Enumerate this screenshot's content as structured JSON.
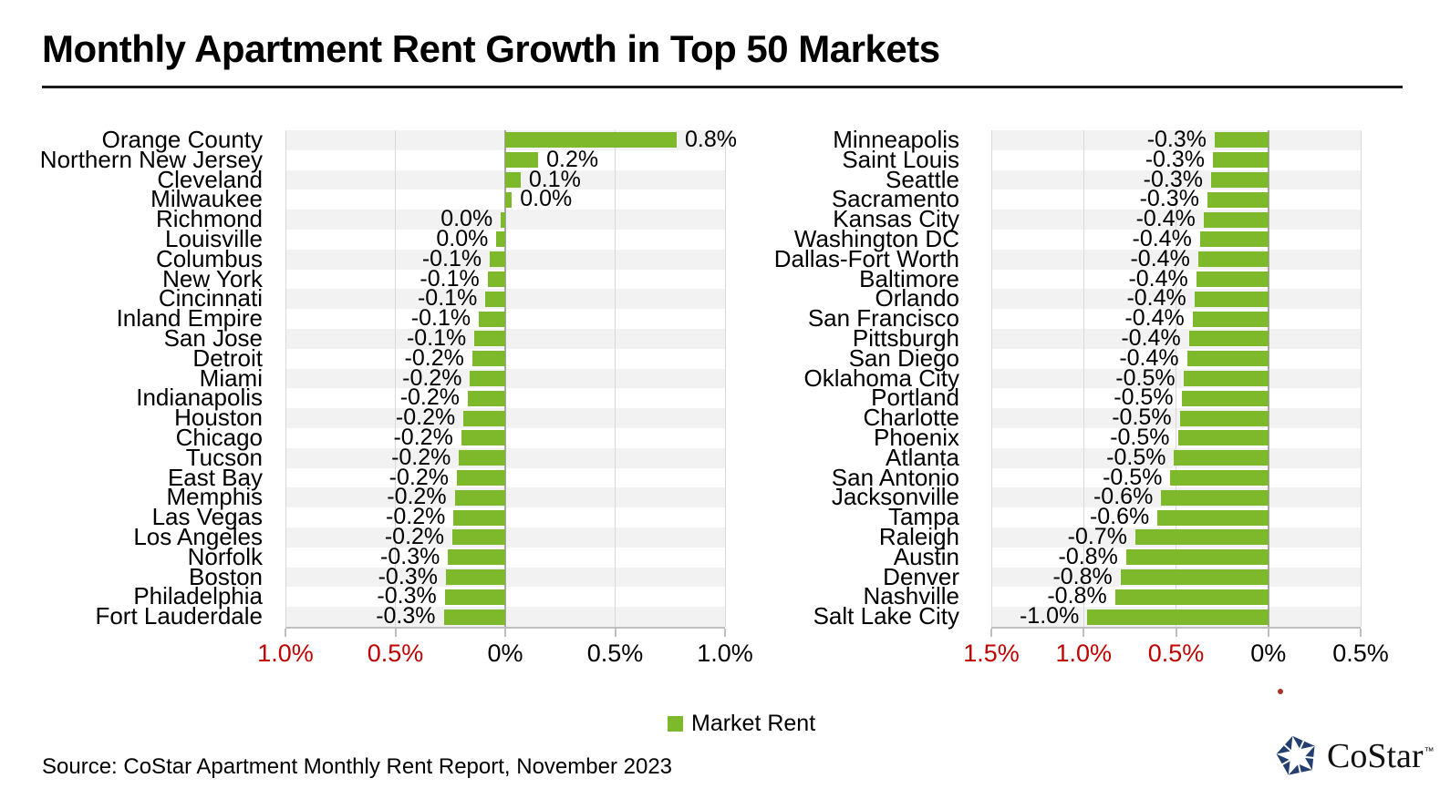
{
  "header": {
    "title": "Monthly Apartment Rent Growth in Top 50 Markets"
  },
  "legend": {
    "label": "Market Rent"
  },
  "source": {
    "text": "Source: CoStar Apartment Monthly Rent Report, November 2023"
  },
  "logo": {
    "text": "CoStar",
    "tm": "™"
  },
  "colors": {
    "bar_green": "#7db92b",
    "negative_tick_red": "#c00000",
    "stripe_gray": "#f2f2f2",
    "grid_gray": "#d9d9d9",
    "zero_line_gray": "#a6a6a6",
    "axis_gray": "#bfbfbf",
    "stray_dot_red": "#a93328",
    "logo_navy": "#243f6f"
  },
  "chart_data": [
    {
      "type": "bar",
      "orientation": "horizontal",
      "side": "left",
      "series_name": "Market Rent",
      "axis": {
        "min": -1.0,
        "max": 1.0,
        "ticks": [
          {
            "pos": -1.0,
            "label": "1.0%",
            "negative": true
          },
          {
            "pos": -0.5,
            "label": "0.5%",
            "negative": true
          },
          {
            "pos": 0,
            "label": "0%",
            "negative": false
          },
          {
            "pos": 0.5,
            "label": "0.5%",
            "negative": false
          },
          {
            "pos": 1.0,
            "label": "1.0%",
            "negative": false
          }
        ]
      },
      "rows": [
        {
          "city": "Orange County",
          "label": "0.8%",
          "value": 0.78
        },
        {
          "city": "Northern New Jersey",
          "label": "0.2%",
          "value": 0.15
        },
        {
          "city": "Cleveland",
          "label": "0.1%",
          "value": 0.07
        },
        {
          "city": "Milwaukee",
          "label": "0.0%",
          "value": 0.03
        },
        {
          "city": "Richmond",
          "label": "0.0%",
          "value": -0.02
        },
        {
          "city": "Louisville",
          "label": "0.0%",
          "value": -0.04
        },
        {
          "city": "Columbus",
          "label": "-0.1%",
          "value": -0.07
        },
        {
          "city": "New York",
          "label": "-0.1%",
          "value": -0.08
        },
        {
          "city": "Cincinnati",
          "label": "-0.1%",
          "value": -0.09
        },
        {
          "city": "Inland Empire",
          "label": "-0.1%",
          "value": -0.12
        },
        {
          "city": "San Jose",
          "label": "-0.1%",
          "value": -0.14
        },
        {
          "city": "Detroit",
          "label": "-0.2%",
          "value": -0.15
        },
        {
          "city": "Miami",
          "label": "-0.2%",
          "value": -0.16
        },
        {
          "city": "Indianapolis",
          "label": "-0.2%",
          "value": -0.17
        },
        {
          "city": "Houston",
          "label": "-0.2%",
          "value": -0.19
        },
        {
          "city": "Chicago",
          "label": "-0.2%",
          "value": -0.2
        },
        {
          "city": "Tucson",
          "label": "-0.2%",
          "value": -0.21
        },
        {
          "city": "East Bay",
          "label": "-0.2%",
          "value": -0.22
        },
        {
          "city": "Memphis",
          "label": "-0.2%",
          "value": -0.23
        },
        {
          "city": "Las Vegas",
          "label": "-0.2%",
          "value": -0.235
        },
        {
          "city": "Los Angeles",
          "label": "-0.2%",
          "value": -0.24
        },
        {
          "city": "Norfolk",
          "label": "-0.3%",
          "value": -0.26
        },
        {
          "city": "Boston",
          "label": "-0.3%",
          "value": -0.27
        },
        {
          "city": "Philadelphia",
          "label": "-0.3%",
          "value": -0.275
        },
        {
          "city": "Fort Lauderdale",
          "label": "-0.3%",
          "value": -0.28
        }
      ]
    },
    {
      "type": "bar",
      "orientation": "horizontal",
      "side": "right",
      "series_name": "Market Rent",
      "axis": {
        "min": -1.5,
        "max": 0.5,
        "ticks": [
          {
            "pos": -1.5,
            "label": "1.5%",
            "negative": true
          },
          {
            "pos": -1.0,
            "label": "1.0%",
            "negative": true
          },
          {
            "pos": -0.5,
            "label": "0.5%",
            "negative": true
          },
          {
            "pos": 0,
            "label": "0%",
            "negative": false
          },
          {
            "pos": 0.5,
            "label": "0.5%",
            "negative": false
          }
        ]
      },
      "rows": [
        {
          "city": "Minneapolis",
          "label": "-0.3%",
          "value": -0.29
        },
        {
          "city": "Saint Louis",
          "label": "-0.3%",
          "value": -0.3
        },
        {
          "city": "Seattle",
          "label": "-0.3%",
          "value": -0.31
        },
        {
          "city": "Sacramento",
          "label": "-0.3%",
          "value": -0.33
        },
        {
          "city": "Kansas City",
          "label": "-0.4%",
          "value": -0.35
        },
        {
          "city": "Washington DC",
          "label": "-0.4%",
          "value": -0.37
        },
        {
          "city": "Dallas-Fort Worth",
          "label": "-0.4%",
          "value": -0.38
        },
        {
          "city": "Baltimore",
          "label": "-0.4%",
          "value": -0.39
        },
        {
          "city": "Orlando",
          "label": "-0.4%",
          "value": -0.4
        },
        {
          "city": "San Francisco",
          "label": "-0.4%",
          "value": -0.41
        },
        {
          "city": "Pittsburgh",
          "label": "-0.4%",
          "value": -0.43
        },
        {
          "city": "San Diego",
          "label": "-0.4%",
          "value": -0.44
        },
        {
          "city": "Oklahoma City",
          "label": "-0.5%",
          "value": -0.46
        },
        {
          "city": "Portland",
          "label": "-0.5%",
          "value": -0.47
        },
        {
          "city": "Charlotte",
          "label": "-0.5%",
          "value": -0.48
        },
        {
          "city": "Phoenix",
          "label": "-0.5%",
          "value": -0.49
        },
        {
          "city": "Atlanta",
          "label": "-0.5%",
          "value": -0.51
        },
        {
          "city": "San Antonio",
          "label": "-0.5%",
          "value": -0.53
        },
        {
          "city": "Jacksonville",
          "label": "-0.6%",
          "value": -0.58
        },
        {
          "city": "Tampa",
          "label": "-0.6%",
          "value": -0.6
        },
        {
          "city": "Raleigh",
          "label": "-0.7%",
          "value": -0.72
        },
        {
          "city": "Austin",
          "label": "-0.8%",
          "value": -0.77
        },
        {
          "city": "Denver",
          "label": "-0.8%",
          "value": -0.8
        },
        {
          "city": "Nashville",
          "label": "-0.8%",
          "value": -0.83
        },
        {
          "city": "Salt Lake City",
          "label": "-1.0%",
          "value": -0.98
        }
      ]
    }
  ]
}
